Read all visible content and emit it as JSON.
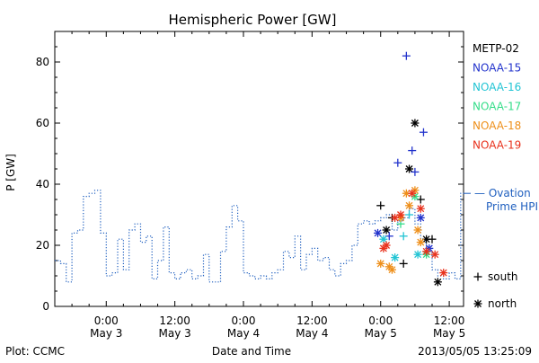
{
  "chart_data": {
    "type": "line",
    "title": "Hemispheric Power [GW]",
    "xlabel": "Date and Time",
    "ylabel": "P [GW]",
    "xlim": [
      "2013-05-02 15:00",
      "2013-05-05 14:30"
    ],
    "ylim": [
      0,
      90
    ],
    "grid": false,
    "x_tick_labels": [
      {
        "x": "2013-05-03 00:00",
        "lines": [
          "0:00",
          "May 3"
        ]
      },
      {
        "x": "2013-05-03 12:00",
        "lines": [
          "12:00",
          "May 3"
        ]
      },
      {
        "x": "2013-05-04 00:00",
        "lines": [
          "0:00",
          "May 4"
        ]
      },
      {
        "x": "2013-05-04 12:00",
        "lines": [
          "12:00",
          "May 4"
        ]
      },
      {
        "x": "2013-05-05 00:00",
        "lines": [
          "0:00",
          "May 5"
        ]
      },
      {
        "x": "2013-05-05 12:00",
        "lines": [
          "12:00",
          "May 5"
        ]
      }
    ],
    "y_tick_labels": [
      {
        "y": 0,
        "label": "0"
      },
      {
        "y": 20,
        "label": "20"
      },
      {
        "y": 40,
        "label": "40"
      },
      {
        "y": 60,
        "label": "60"
      },
      {
        "y": 80,
        "label": "80"
      }
    ],
    "legend_placement": "right",
    "series": [
      {
        "name": "Ovation Prime HPI",
        "label_lines": [
          "— Ovation",
          "Prime HPI"
        ],
        "color": "#1f5fbf",
        "style": "dotted-step",
        "x": [
          "2013-05-02 15:00",
          "2013-05-02 16:00",
          "2013-05-02 17:00",
          "2013-05-02 18:00",
          "2013-05-02 19:00",
          "2013-05-02 20:00",
          "2013-05-02 21:00",
          "2013-05-02 22:00",
          "2013-05-02 23:00",
          "2013-05-03 00:00",
          "2013-05-03 01:00",
          "2013-05-03 02:00",
          "2013-05-03 03:00",
          "2013-05-03 04:00",
          "2013-05-03 05:00",
          "2013-05-03 06:00",
          "2013-05-03 07:00",
          "2013-05-03 08:00",
          "2013-05-03 09:00",
          "2013-05-03 10:00",
          "2013-05-03 11:00",
          "2013-05-03 12:00",
          "2013-05-03 13:00",
          "2013-05-03 14:00",
          "2013-05-03 15:00",
          "2013-05-03 16:00",
          "2013-05-03 17:00",
          "2013-05-03 18:00",
          "2013-05-03 19:00",
          "2013-05-03 20:00",
          "2013-05-03 21:00",
          "2013-05-03 22:00",
          "2013-05-03 23:00",
          "2013-05-04 00:00",
          "2013-05-04 01:00",
          "2013-05-04 02:00",
          "2013-05-04 03:00",
          "2013-05-04 04:00",
          "2013-05-04 05:00",
          "2013-05-04 06:00",
          "2013-05-04 07:00",
          "2013-05-04 08:00",
          "2013-05-04 09:00",
          "2013-05-04 10:00",
          "2013-05-04 11:00",
          "2013-05-04 12:00",
          "2013-05-04 13:00",
          "2013-05-04 14:00",
          "2013-05-04 15:00",
          "2013-05-04 16:00",
          "2013-05-04 17:00",
          "2013-05-04 18:00",
          "2013-05-04 19:00",
          "2013-05-04 20:00",
          "2013-05-04 21:00",
          "2013-05-04 22:00",
          "2013-05-04 23:00",
          "2013-05-05 00:00",
          "2013-05-05 01:00",
          "2013-05-05 02:00",
          "2013-05-05 03:00",
          "2013-05-05 04:00",
          "2013-05-05 05:00",
          "2013-05-05 06:00",
          "2013-05-05 07:00",
          "2013-05-05 08:00",
          "2013-05-05 09:00",
          "2013-05-05 10:00",
          "2013-05-05 11:00",
          "2013-05-05 12:00",
          "2013-05-05 13:00",
          "2013-05-05 14:00"
        ],
        "y": [
          15,
          14,
          8,
          24,
          25,
          36,
          37,
          38,
          24,
          10,
          11,
          22,
          12,
          25,
          27,
          21,
          23,
          9,
          15,
          26,
          11,
          9,
          11,
          12,
          9,
          10,
          17,
          8,
          8,
          18,
          26,
          33,
          28,
          11,
          10,
          9,
          10,
          9,
          11,
          12,
          18,
          16,
          23,
          12,
          17,
          19,
          15,
          16,
          12,
          10,
          14,
          15,
          20,
          27,
          28,
          27,
          28,
          29,
          30,
          25,
          28,
          29,
          32,
          27,
          21,
          18,
          12,
          10,
          9,
          11,
          9,
          37
        ]
      },
      {
        "name": "METP-02",
        "color": "#000000",
        "markers": [
          {
            "x": "2013-05-05 00:00",
            "y": 33,
            "m": "+"
          },
          {
            "x": "2013-05-05 01:00",
            "y": 25,
            "m": "*"
          },
          {
            "x": "2013-05-05 02:00",
            "y": 29,
            "m": "+"
          },
          {
            "x": "2013-05-05 04:00",
            "y": 14,
            "m": "+"
          },
          {
            "x": "2013-05-05 05:00",
            "y": 45,
            "m": "*"
          },
          {
            "x": "2013-05-05 06:00",
            "y": 60,
            "m": "*"
          },
          {
            "x": "2013-05-05 07:00",
            "y": 35,
            "m": "+"
          },
          {
            "x": "2013-05-05 08:00",
            "y": 22,
            "m": "*"
          },
          {
            "x": "2013-05-05 09:00",
            "y": 22,
            "m": "+"
          },
          {
            "x": "2013-05-05 10:00",
            "y": 8,
            "m": "*"
          }
        ]
      },
      {
        "name": "NOAA-15",
        "color": "#2233cc",
        "markers": [
          {
            "x": "2013-05-04 23:30",
            "y": 24,
            "m": "*"
          },
          {
            "x": "2013-05-05 01:30",
            "y": 23,
            "m": "+"
          },
          {
            "x": "2013-05-05 03:00",
            "y": 47,
            "m": "+"
          },
          {
            "x": "2013-05-05 04:30",
            "y": 82,
            "m": "+"
          },
          {
            "x": "2013-05-05 05:30",
            "y": 51,
            "m": "+"
          },
          {
            "x": "2013-05-05 06:00",
            "y": 44,
            "m": "+"
          },
          {
            "x": "2013-05-05 07:30",
            "y": 57,
            "m": "+"
          },
          {
            "x": "2013-05-05 08:30",
            "y": 19,
            "m": "*"
          },
          {
            "x": "2013-05-05 07:00",
            "y": 29,
            "m": "*"
          }
        ]
      },
      {
        "name": "NOAA-16",
        "color": "#22c4d4",
        "markers": [
          {
            "x": "2013-05-05 00:30",
            "y": 22,
            "m": "*"
          },
          {
            "x": "2013-05-05 02:30",
            "y": 16,
            "m": "*"
          },
          {
            "x": "2013-05-05 04:00",
            "y": 23,
            "m": "+"
          },
          {
            "x": "2013-05-05 05:00",
            "y": 30,
            "m": "+"
          },
          {
            "x": "2013-05-05 06:30",
            "y": 17,
            "m": "*"
          }
        ]
      },
      {
        "name": "NOAA-17",
        "color": "#33dd88",
        "markers": [
          {
            "x": "2013-05-05 03:30",
            "y": 27,
            "m": "+"
          },
          {
            "x": "2013-05-05 06:00",
            "y": 36,
            "m": "*"
          },
          {
            "x": "2013-05-05 08:00",
            "y": 17,
            "m": "*"
          }
        ]
      },
      {
        "name": "NOAA-18",
        "color": "#ee8f1a",
        "markers": [
          {
            "x": "2013-05-05 00:00",
            "y": 14,
            "m": "*"
          },
          {
            "x": "2013-05-05 01:30",
            "y": 13,
            "m": "*"
          },
          {
            "x": "2013-05-05 02:00",
            "y": 12,
            "m": "*"
          },
          {
            "x": "2013-05-05 03:30",
            "y": 29,
            "m": "*"
          },
          {
            "x": "2013-05-05 04:30",
            "y": 37,
            "m": "*"
          },
          {
            "x": "2013-05-05 05:00",
            "y": 33,
            "m": "*"
          },
          {
            "x": "2013-05-05 06:00",
            "y": 38,
            "m": "*"
          },
          {
            "x": "2013-05-05 06:30",
            "y": 25,
            "m": "*"
          },
          {
            "x": "2013-05-05 07:00",
            "y": 21,
            "m": "*"
          }
        ]
      },
      {
        "name": "NOAA-19",
        "color": "#e8311c",
        "markers": [
          {
            "x": "2013-05-05 00:30",
            "y": 19,
            "m": "*"
          },
          {
            "x": "2013-05-05 01:00",
            "y": 20,
            "m": "*"
          },
          {
            "x": "2013-05-05 02:30",
            "y": 29,
            "m": "*"
          },
          {
            "x": "2013-05-05 03:30",
            "y": 30,
            "m": "*"
          },
          {
            "x": "2013-05-05 05:30",
            "y": 37,
            "m": "*"
          },
          {
            "x": "2013-05-05 07:00",
            "y": 32,
            "m": "*"
          },
          {
            "x": "2013-05-05 08:00",
            "y": 18,
            "m": "*"
          },
          {
            "x": "2013-05-05 09:30",
            "y": 17,
            "m": "*"
          },
          {
            "x": "2013-05-05 11:00",
            "y": 11,
            "m": "*"
          }
        ]
      }
    ],
    "marker_key": [
      {
        "symbol": "+",
        "label": "south"
      },
      {
        "symbol": "*",
        "label": "north"
      }
    ],
    "footer": {
      "left": "Plot: CCMC",
      "center": "Date and Time",
      "right": "2013/05/05 13:25:09"
    }
  }
}
